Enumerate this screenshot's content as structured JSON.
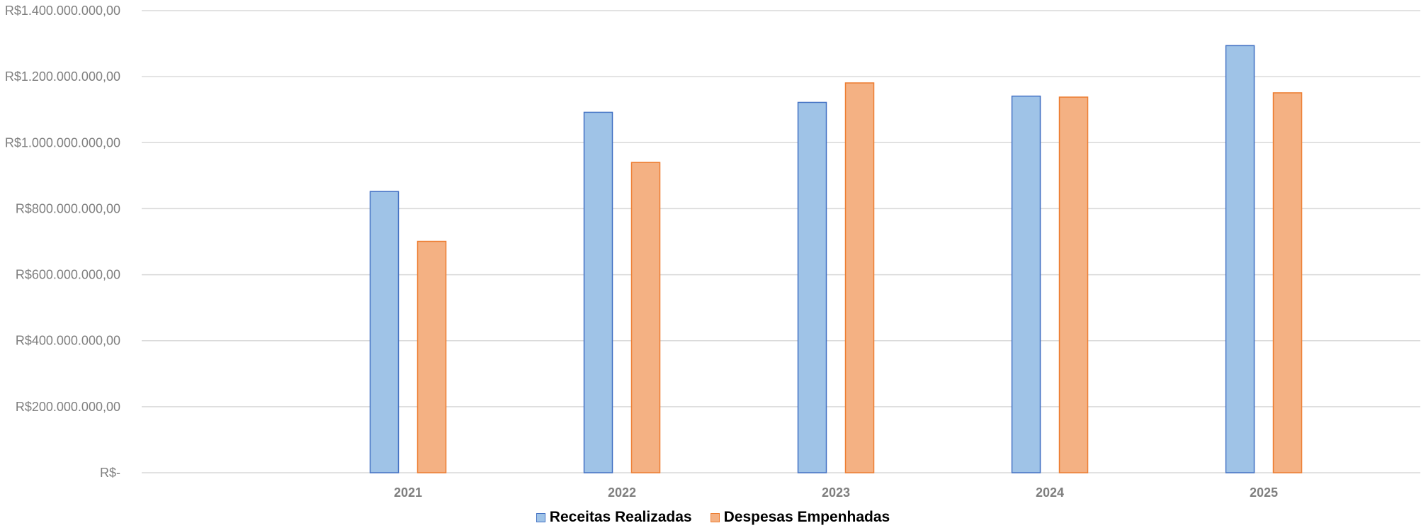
{
  "chart_data": {
    "type": "bar",
    "categories": [
      "2021",
      "2022",
      "2023",
      "2024",
      "2025"
    ],
    "series": [
      {
        "name": "Receitas Realizadas",
        "values": [
          852000000,
          1092000000,
          1122000000,
          1141000000,
          1294000000
        ],
        "fill": "#9fc3e7",
        "stroke": "#4472c4"
      },
      {
        "name": "Despesas Empenhadas",
        "values": [
          701000000,
          940000000,
          1181000000,
          1138000000,
          1151000000
        ],
        "fill": "#f4b183",
        "stroke": "#ed7d31"
      }
    ],
    "ylim": [
      0,
      1400000000
    ],
    "yticks": [
      {
        "value": 0,
        "label": "R$-"
      },
      {
        "value": 200000000,
        "label": "R$200.000.000,00"
      },
      {
        "value": 400000000,
        "label": "R$400.000.000,00"
      },
      {
        "value": 600000000,
        "label": "R$600.000.000,00"
      },
      {
        "value": 800000000,
        "label": "R$800.000.000,00"
      },
      {
        "value": 1000000000,
        "label": "R$1.000.000.000,00"
      },
      {
        "value": 1200000000,
        "label": "R$1.200.000.000,00"
      },
      {
        "value": 1400000000,
        "label": "R$1.400.000.000,00"
      }
    ],
    "grid": true,
    "gridColor": "#d9d9d9",
    "legend_position": "bottom"
  },
  "legend": {
    "receitas": "Receitas Realizadas",
    "despesas": "Despesas Empenhadas"
  }
}
